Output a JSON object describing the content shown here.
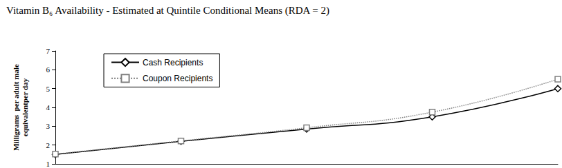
{
  "chart_data": {
    "type": "line",
    "title": "Vitamin B₆ Availability - Estimated at Quintile Conditional Means (RDA = 2)",
    "y_label": "Milligrams  per adult male\nequivalentper day",
    "categories": [
      null,
      null,
      null,
      null,
      null
    ],
    "series": [
      {
        "name": "Cash Recipients",
        "color": "#000000",
        "marker": "diamond",
        "line_style": "solid",
        "values": [
          1.5,
          2.2,
          2.85,
          3.5,
          5.0
        ]
      },
      {
        "name": "Coupon Recipients",
        "color": "#808080",
        "marker": "rect",
        "line_style": "dotted",
        "values": [
          1.52,
          2.22,
          2.92,
          3.75,
          5.5
        ]
      }
    ],
    "ylim": [
      1,
      7
    ],
    "yticks": [
      1,
      2,
      3,
      4,
      5,
      6,
      7
    ],
    "grid": false,
    "legend": "top-left",
    "tick_labels": "y"
  }
}
